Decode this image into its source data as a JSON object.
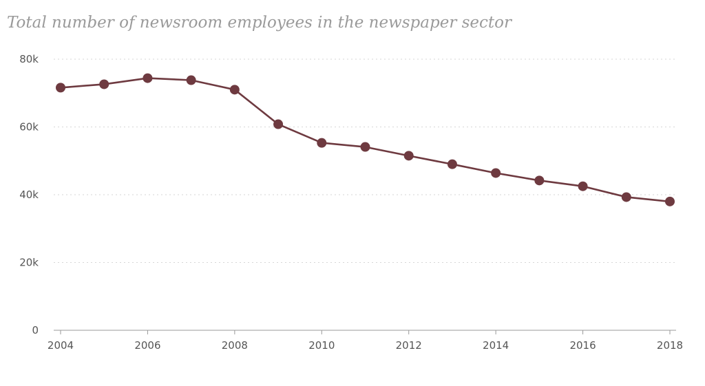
{
  "chart_data": {
    "type": "line",
    "title": "Total number of newsroom employees in the newspaper sector",
    "xlabel": "",
    "ylabel": "",
    "x": [
      2004,
      2005,
      2006,
      2007,
      2008,
      2009,
      2010,
      2011,
      2012,
      2013,
      2014,
      2015,
      2016,
      2017,
      2018
    ],
    "series": [
      {
        "values": [
          71600,
          72600,
          74400,
          73800,
          71000,
          60800,
          55300,
          54100,
          51500,
          49000,
          46400,
          44200,
          42500,
          39300,
          38000
        ]
      }
    ],
    "xlim": [
      2004,
      2018
    ],
    "ylim": [
      0,
      80000
    ],
    "x_ticks": [
      2004,
      2006,
      2008,
      2010,
      2012,
      2014,
      2016,
      2018
    ],
    "x_tick_labels": [
      "2004",
      "2006",
      "2008",
      "2010",
      "2012",
      "2014",
      "2016",
      "2018"
    ],
    "y_ticks": [
      0,
      20000,
      40000,
      60000,
      80000
    ],
    "y_tick_labels": [
      "0",
      "20k",
      "40k",
      "60k",
      "80k"
    ],
    "grid": true,
    "legend": "none",
    "colors": {
      "line": "#6e3a40",
      "marker": "#6e3a40",
      "title": "#9a9a9a"
    }
  }
}
